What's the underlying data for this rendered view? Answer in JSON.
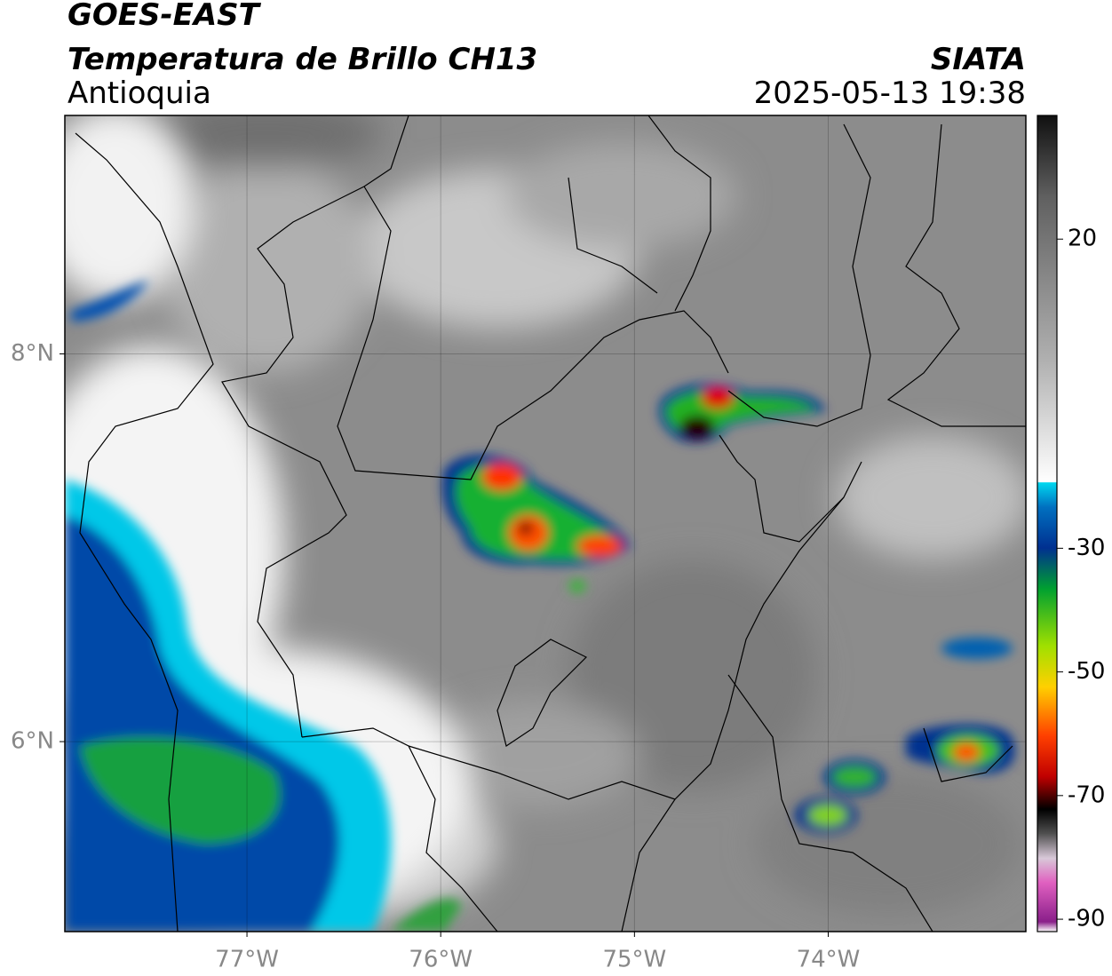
{
  "header": {
    "title": "GOES-EAST",
    "subtitle": "Temperatura de Brillo CH13",
    "region": "Antioquia",
    "source": "SIATA",
    "timestamp": "2025-05-13 19:38"
  },
  "map": {
    "lonlim": [
      -77.94,
      -72.98
    ],
    "latlim": [
      5.02,
      9.23
    ],
    "lonticks": [
      {
        "value": -77,
        "label": "77°W"
      },
      {
        "value": -76,
        "label": "76°W"
      },
      {
        "value": -75,
        "label": "75°W"
      },
      {
        "value": -74,
        "label": "74°W"
      }
    ],
    "latticks": [
      {
        "value": 6,
        "label": "6°N"
      },
      {
        "value": 8,
        "label": "8°N"
      }
    ]
  },
  "colorbar": {
    "lim": [
      -92,
      40
    ],
    "ticks": [
      20,
      -30,
      -50,
      -70,
      -90
    ]
  }
}
